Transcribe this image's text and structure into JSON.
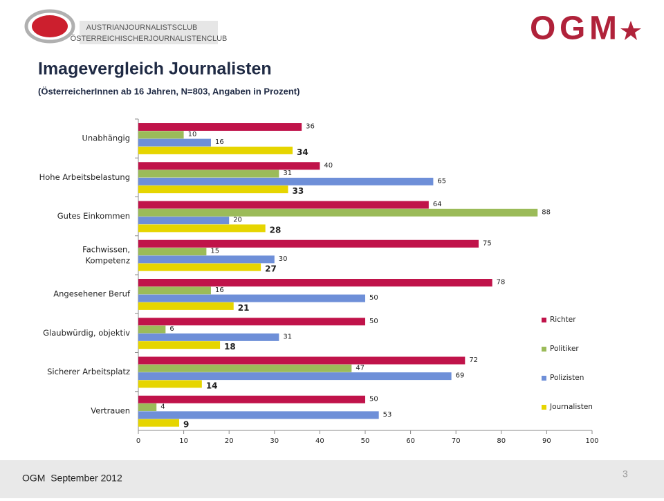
{
  "header": {
    "club_line1": "AUSTRIANJOURNALISTSCLUB",
    "club_line2": "ÖSTERREICHISCHERJOURNALISTENCLUB",
    "brand": "OGM"
  },
  "footer": {
    "text": "OGM  September 2012",
    "page": "3"
  },
  "chart_data": {
    "type": "hbar",
    "title": "Imagevergleich Journalisten",
    "subtitle": "(ÖsterreicherInnen ab 16 Jahren, N=803, Angaben in Prozent)",
    "categories": [
      "Unabhängig",
      "Hohe Arbeitsbelastung",
      "Gutes Einkommen",
      [
        "Fachwissen,",
        "Kompetenz"
      ],
      "Angesehener Beruf",
      "Glaubwürdig, objektiv",
      "Sicherer Arbeitsplatz",
      "Vertrauen"
    ],
    "series": [
      {
        "name": "Richter",
        "color": "#c0134a",
        "values": [
          36,
          40,
          64,
          75,
          78,
          50,
          72,
          50
        ]
      },
      {
        "name": "Politiker",
        "color": "#9bbb59",
        "values": [
          10,
          31,
          88,
          15,
          16,
          6,
          47,
          4
        ]
      },
      {
        "name": "Polizisten",
        "color": "#6e8fd8",
        "values": [
          16,
          65,
          20,
          30,
          50,
          31,
          69,
          53
        ]
      },
      {
        "name": "Journalisten",
        "color": "#e6d500",
        "values": [
          34,
          33,
          28,
          27,
          21,
          18,
          14,
          9
        ]
      }
    ],
    "xlim": [
      0,
      100
    ],
    "xticks": [
      0,
      10,
      20,
      30,
      40,
      50,
      60,
      70,
      80,
      90,
      100
    ],
    "legend": "right"
  }
}
